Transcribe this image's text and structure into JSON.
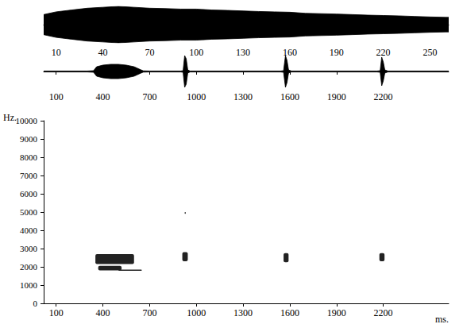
{
  "chart_data": [
    {
      "type": "line",
      "color": "#000000",
      "x": [
        2,
        10,
        20,
        30,
        40,
        50,
        60,
        70,
        80,
        90,
        100,
        110,
        120,
        130,
        140,
        150,
        160,
        170,
        180,
        190,
        200,
        210,
        220,
        230,
        240,
        250,
        260,
        262
      ],
      "values": [
        0.55,
        0.7,
        0.8,
        0.9,
        0.95,
        1.0,
        0.95,
        0.9,
        0.88,
        0.85,
        0.85,
        0.8,
        0.78,
        0.75,
        0.72,
        0.7,
        0.68,
        0.62,
        0.6,
        0.58,
        0.55,
        0.52,
        0.5,
        0.48,
        0.45,
        0.42,
        0.4,
        0.4
      ],
      "xlim": [
        2,
        262
      ],
      "xticks": [
        10,
        40,
        70,
        100,
        130,
        160,
        190,
        220,
        250
      ],
      "ylim": [
        -1,
        1
      ],
      "tick_labels": "x"
    },
    {
      "type": "line",
      "color": "#000000",
      "x": [
        20,
        300,
        340,
        360,
        400,
        450,
        500,
        550,
        600,
        640,
        660,
        700,
        900,
        915,
        925,
        935,
        945,
        960,
        1540,
        1560,
        1572,
        1582,
        1592,
        1610,
        2160,
        2180,
        2190,
        2200,
        2210,
        2230,
        2620
      ],
      "values": [
        0.03,
        0.03,
        0.05,
        0.3,
        0.4,
        0.45,
        0.45,
        0.4,
        0.3,
        0.12,
        0.04,
        0.03,
        0.03,
        0.05,
        1.0,
        0.8,
        0.1,
        0.03,
        0.03,
        0.05,
        1.0,
        0.7,
        0.1,
        0.03,
        0.03,
        0.05,
        0.9,
        0.6,
        0.1,
        0.03,
        0.03
      ],
      "xlim": [
        20,
        2620
      ],
      "xticks": [
        100,
        400,
        700,
        1000,
        1300,
        1600,
        1900,
        2200
      ],
      "ylim": [
        -1,
        1
      ],
      "tick_labels": "x"
    },
    {
      "type": "spectrogram",
      "color": "#222222",
      "y_label": "Hz.",
      "x_label": "ms.",
      "blobs": [
        [
          352,
          600,
          2150,
          2700
        ],
        [
          370,
          520,
          1800,
          2050
        ],
        [
          500,
          650,
          1780,
          1850
        ],
        [
          910,
          945,
          2300,
          2800
        ],
        [
          925,
          932,
          4900,
          5000
        ],
        [
          1560,
          1592,
          2250,
          2750
        ],
        [
          2175,
          2208,
          2300,
          2750
        ]
      ],
      "xlim": [
        20,
        2620
      ],
      "xticks": [
        100,
        400,
        700,
        1000,
        1300,
        1600,
        1900,
        2200
      ],
      "ylim": [
        0,
        10000
      ],
      "yticks": [
        0,
        1000,
        2000,
        3000,
        4000,
        5000,
        6000,
        7000,
        8000,
        9000,
        10000
      ]
    }
  ]
}
